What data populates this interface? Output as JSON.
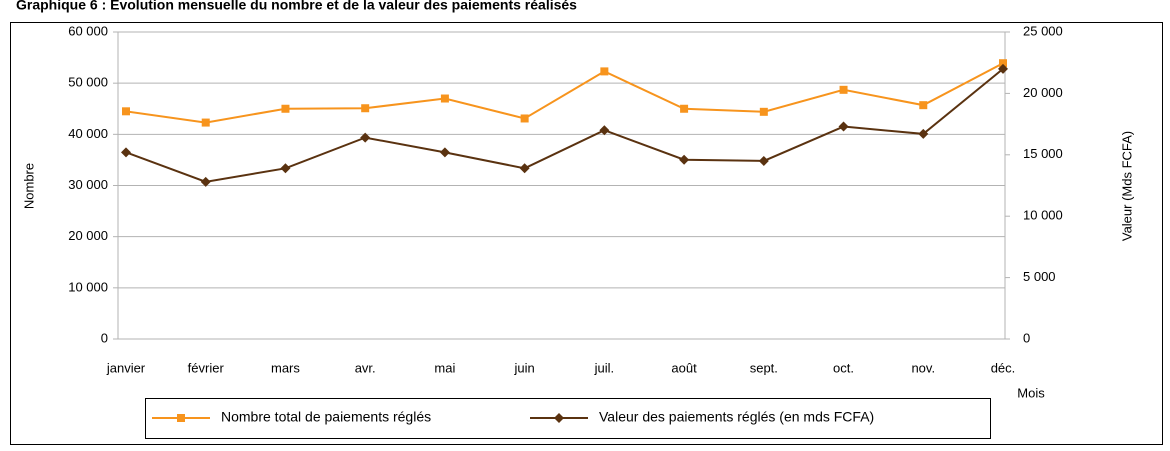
{
  "chart_data": {
    "type": "line",
    "title": "Graphique 6 : Évolution mensuelle du nombre et de la valeur des paiements réalisés",
    "x_label": "Mois",
    "y_label": "Nombre",
    "y2_label": "Valeur (Mds FCFA)",
    "categories": [
      "janvier",
      "février",
      "mars",
      "avr.",
      "mai",
      "juin",
      "juil.",
      "août",
      "sept.",
      "oct.",
      "nov.",
      "déc."
    ],
    "series": [
      {
        "name": "Nombre total de paiements réglés",
        "color": "#f7941d",
        "marker": "square",
        "values": [
          44500,
          42300,
          45000,
          45100,
          47000,
          43100,
          52300,
          45000,
          44400,
          48700,
          45700,
          53900
        ]
      },
      {
        "name": "Valeur des paiements réglés  (en mds FCFA)",
        "color": "#5a3210",
        "marker": "diamond",
        "axis": "y2",
        "values": [
          15200,
          12800,
          13900,
          16400,
          15200,
          13900,
          17000,
          14600,
          14500,
          17300,
          16700,
          22000
        ]
      }
    ],
    "ylim": [
      0,
      60000
    ],
    "yticks": [
      0,
      {
        "value": 10000,
        "label": "10 000"
      },
      {
        "value": 20000,
        "label": "20 000"
      },
      {
        "value": 30000,
        "label": "30 000"
      },
      {
        "value": 40000,
        "label": "40 000"
      },
      {
        "value": 50000,
        "label": "50 000"
      },
      {
        "value": 60000,
        "label": "60 000"
      }
    ],
    "y2lim": [
      0,
      25000
    ],
    "y2ticks": [
      0,
      {
        "value": 5000,
        "label": "5 000"
      },
      {
        "value": 10000,
        "label": "10 000"
      },
      {
        "value": 15000,
        "label": "15 000"
      },
      {
        "value": 20000,
        "label": "20 000"
      },
      {
        "value": 25000,
        "label": "25 000"
      }
    ],
    "grid": true,
    "legend": "bottom"
  }
}
